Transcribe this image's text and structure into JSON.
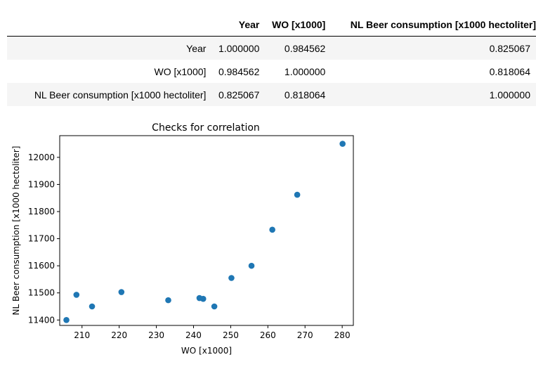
{
  "table": {
    "columns": [
      "",
      "Year",
      "WO [x1000]",
      "NL Beer consumption [x1000 hectoliter]"
    ],
    "rows": [
      {
        "label": "Year",
        "values": [
          "1.000000",
          "0.984562",
          "0.825067"
        ]
      },
      {
        "label": "WO [x1000]",
        "values": [
          "0.984562",
          "1.000000",
          "0.818064"
        ]
      },
      {
        "label": "NL Beer consumption [x1000 hectoliter]",
        "values": [
          "0.825067",
          "0.818064",
          "1.000000"
        ]
      }
    ]
  },
  "chart_data": {
    "type": "scatter",
    "title": "Checks for correlation",
    "xlabel": "WO [x1000]",
    "ylabel": "NL Beer consumption [x1000 hectoliter]",
    "xlim": [
      204,
      283
    ],
    "ylim": [
      11380,
      12080
    ],
    "xticks": [
      210,
      220,
      230,
      240,
      250,
      260,
      270,
      280
    ],
    "yticks": [
      11400,
      11500,
      11600,
      11700,
      11800,
      11900,
      12000
    ],
    "grid": false,
    "marker_color": "#1f77b4",
    "points": [
      {
        "x": 205.8,
        "y": 11400
      },
      {
        "x": 208.5,
        "y": 11493
      },
      {
        "x": 212.7,
        "y": 11450
      },
      {
        "x": 220.6,
        "y": 11503
      },
      {
        "x": 233.2,
        "y": 11473
      },
      {
        "x": 241.6,
        "y": 11481
      },
      {
        "x": 242.6,
        "y": 11478
      },
      {
        "x": 245.6,
        "y": 11450
      },
      {
        "x": 250.2,
        "y": 11555
      },
      {
        "x": 255.6,
        "y": 11600
      },
      {
        "x": 261.2,
        "y": 11733
      },
      {
        "x": 267.9,
        "y": 11862
      },
      {
        "x": 280.1,
        "y": 12050
      }
    ]
  }
}
